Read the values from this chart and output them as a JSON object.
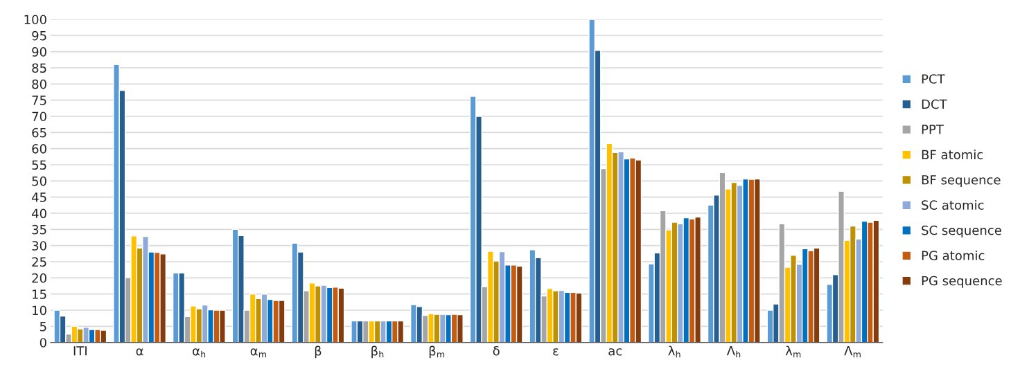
{
  "chart_data": {
    "type": "bar",
    "categories": [
      "ITI",
      "α",
      "α$_{h}$",
      "α$_{m}$",
      "β",
      "β$_{h}$",
      "β$_{m}$",
      "δ",
      "ε",
      "ac",
      "λ$_{h}$",
      "Λ$_{h}$",
      "λ$_{m}$",
      "Λ$_{m}$"
    ],
    "series": [
      {
        "name": "PCT",
        "color": "#5b9bd5",
        "values": [
          10,
          86,
          21.5,
          35,
          30.7,
          6.7,
          11.7,
          76.2,
          28.7,
          100,
          24.3,
          42.5,
          10,
          18
        ]
      },
      {
        "name": "DCT",
        "color": "#255e91",
        "values": [
          8.2,
          78,
          21.5,
          33.1,
          28,
          6.7,
          11.1,
          70,
          26.2,
          90.4,
          27.7,
          45.6,
          11.9,
          21
        ]
      },
      {
        "name": "PPT",
        "color": "#a5a5a5",
        "values": [
          2.6,
          20,
          8,
          10,
          16,
          6.7,
          8.4,
          17.3,
          14.4,
          53.8,
          40.8,
          52.6,
          36.7,
          46.8
        ]
      },
      {
        "name": "BF atomic",
        "color": "#ffc000",
        "values": [
          5,
          33,
          11.3,
          15,
          18.4,
          6.7,
          8.9,
          28.2,
          16.7,
          61.6,
          34.8,
          47.5,
          23.3,
          31.6
        ]
      },
      {
        "name": "BF sequence",
        "color": "#bf9000",
        "values": [
          4.2,
          29.2,
          10.4,
          13.6,
          17.5,
          6.7,
          8.7,
          25.2,
          16,
          58.8,
          37.2,
          49.5,
          27,
          36
        ]
      },
      {
        "name": "SC atomic",
        "color": "#8eaadb",
        "values": [
          4.7,
          32.8,
          11.6,
          15,
          17.7,
          6.7,
          8.7,
          28.1,
          16.1,
          59,
          36.7,
          48.6,
          24.2,
          32
        ]
      },
      {
        "name": "SC sequence",
        "color": "#0070c0",
        "values": [
          4,
          28,
          10.1,
          13.3,
          17,
          6.7,
          8.6,
          24,
          15.5,
          56.8,
          38.6,
          50.6,
          29,
          37.5
        ]
      },
      {
        "name": "PG atomic",
        "color": "#c55a11",
        "values": [
          4,
          27.9,
          10,
          13,
          17.1,
          6.7,
          8.7,
          24,
          15.5,
          57.1,
          38.2,
          50.5,
          28.4,
          37.2
        ]
      },
      {
        "name": "PG sequence",
        "color": "#843c0c",
        "values": [
          3.8,
          27.4,
          10,
          13,
          16.8,
          6.7,
          8.6,
          23.6,
          15.3,
          56.5,
          38.8,
          50.6,
          29.2,
          37.8
        ]
      }
    ],
    "ylim": [
      0,
      100
    ],
    "yticks": [
      0,
      5,
      10,
      15,
      20,
      25,
      30,
      35,
      40,
      45,
      50,
      55,
      60,
      65,
      70,
      75,
      80,
      85,
      90,
      95,
      100
    ],
    "grid": "y",
    "legend": "right"
  }
}
